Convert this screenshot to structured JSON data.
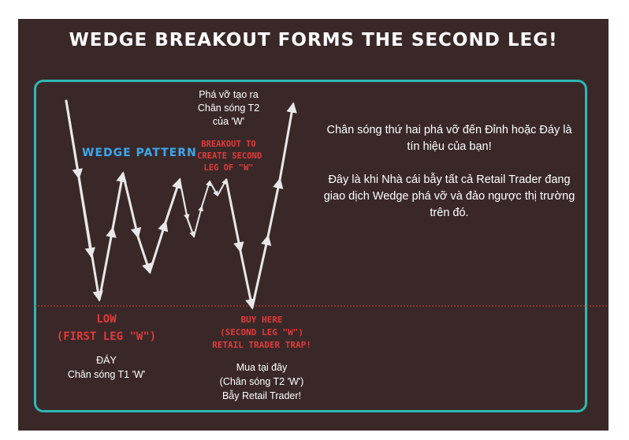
{
  "title": "WEDGE BREAKOUT FORMS THE SECOND LEG!",
  "labels": {
    "wedge_pattern": "WEDGE PATTERN",
    "breakout": [
      "BREAKOUT TO",
      "CREATE SECOND",
      "LEG OF \"W\""
    ],
    "pha_vo": [
      "Phá vỡ tạo ra",
      "Chân sóng T2",
      "của 'W'"
    ],
    "low": [
      "LOW",
      "(FIRST LEG \"W\")"
    ],
    "day": [
      "ĐÁY",
      "Chân sóng T1 'W'"
    ],
    "buy_here": [
      "BUY HERE",
      "(SECOND LEG \"W\")",
      "RETAIL TRADER TRAP!"
    ],
    "mua": [
      "Mua tại đây",
      "(Chân sóng T2 'W')",
      "Bẫy Retail Trader!"
    ]
  },
  "description": {
    "para1": "Chân sóng thứ hai phá vỡ đến Đỉnh hoặc Đáy là tín hiệu của bạn!",
    "para2": "Đây là khi Nhà cái bẫy tất cả Retail Trader đang giao dịch Wedge phá vỡ và đảo ngược thị trường trên đó."
  },
  "colors": {
    "background": "#3a2828",
    "frame": "#2fb8b4",
    "arrow": "#e8e8e8",
    "red_text": "#e23a3a",
    "blue_text": "#3aa8f0",
    "support_line": "#c84040"
  }
}
